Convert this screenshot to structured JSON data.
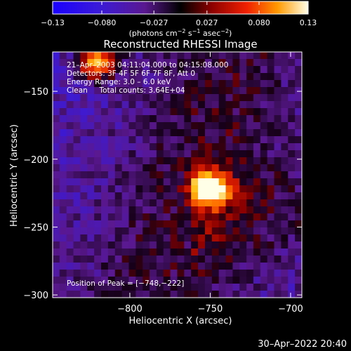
{
  "chart_data": {
    "type": "heatmap",
    "title": "Reconstructed RHESSI Image",
    "xlabel": "Heliocentric X (arcsec)",
    "ylabel": "Heliocentric Y (arcsec)",
    "xlim": [
      -848,
      -693
    ],
    "ylim": [
      -302,
      -121
    ],
    "x_ticks": [
      -800,
      -750,
      -700
    ],
    "x_tick_labels": [
      "−800",
      "−750",
      "−700"
    ],
    "y_ticks": [
      -150,
      -200,
      -250,
      -300
    ],
    "y_tick_labels": [
      "−150",
      "−200",
      "−250",
      "−300"
    ],
    "colorbar": {
      "range": [
        -0.13,
        0.13
      ],
      "ticks": [
        -0.13,
        -0.08,
        -0.027,
        0.027,
        0.08,
        0.13
      ],
      "tick_labels": [
        "−0.13",
        "−0.080",
        "−0.027",
        "0.027",
        "0.080",
        "0.13"
      ],
      "unit_parts": [
        "(photons cm",
        "−2",
        " s",
        "−1",
        " asec",
        "−2",
        ")"
      ]
    },
    "annotations": [
      "21–Apr–2003 04:11:04.000 to 04:15:08.000",
      "Detectors: 3F 4F 5F 6F 7F 8F, Att 0",
      "Energy Range: 3.0 – 6.0 keV",
      "Clean     Total counts: 3.64E+04"
    ],
    "peak_label": "Position of Peak = [−748,−222]",
    "peak_position": [
      -748,
      -222
    ],
    "sources": [
      {
        "x": -750,
        "y": -222,
        "peak": 0.13
      },
      {
        "x": -820,
        "y": -128,
        "peak": 0.11
      }
    ]
  },
  "footer": {
    "date_stamp": "30–Apr–2022 20:40"
  }
}
